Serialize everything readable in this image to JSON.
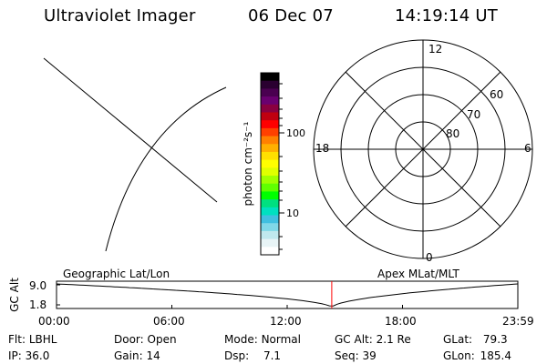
{
  "header": {
    "title": "Ultraviolet Imager",
    "date": "06 Dec 07",
    "time": "14:19:14 UT"
  },
  "colorbar": {
    "unit_label": "photon cm⁻²s⁻¹",
    "tick_labels": [
      "100",
      "10"
    ],
    "colors": [
      "#000000",
      "#2a0030",
      "#4a0050",
      "#6a0070",
      "#8a0040",
      "#c00010",
      "#ff0000",
      "#ff4000",
      "#ff8000",
      "#ffb000",
      "#ffe000",
      "#ffff00",
      "#e0ff00",
      "#a0ff00",
      "#60ff00",
      "#00ff00",
      "#00e080",
      "#00e0c0",
      "#40c0e0",
      "#80d8e8",
      "#c0e8ee",
      "#e8f4f6",
      "#ffffff"
    ]
  },
  "polar": {
    "mlt_labels": {
      "top": "12",
      "left": "18",
      "right": "6",
      "bottom": "0"
    },
    "lat_labels": [
      "60",
      "70",
      "80"
    ]
  },
  "timeline": {
    "left_label": "Geographic Lat/Lon",
    "right_label": "Apex MLat/MLT",
    "ylabel": "GC Alt",
    "ytick_top": "9.0",
    "ytick_bottom": "1.8",
    "xticks": [
      "00:00",
      "06:00",
      "12:00",
      "18:00",
      "23:59"
    ],
    "marker_color": "#ff0000",
    "marker_fraction": 0.5967
  },
  "status": {
    "filter_label": "Flt:",
    "filter_value": "LBHL",
    "ip_label": "IP:",
    "ip_value": "36.0",
    "door_label": "Door:",
    "door_value": "Open",
    "gain_label": "Gain:",
    "gain_value": "14",
    "mode_label": "Mode:",
    "mode_value": "Normal",
    "dsp_label": "Dsp:",
    "dsp_value": "7.1",
    "gcalt_label": "GC Alt:",
    "gcalt_value": "2.1 Re",
    "seq_label": "Seq:",
    "seq_value": "39",
    "glat_label": "GLat:",
    "glat_value": "79.3",
    "glon_label": "GLon:",
    "glon_value": "185.4"
  }
}
